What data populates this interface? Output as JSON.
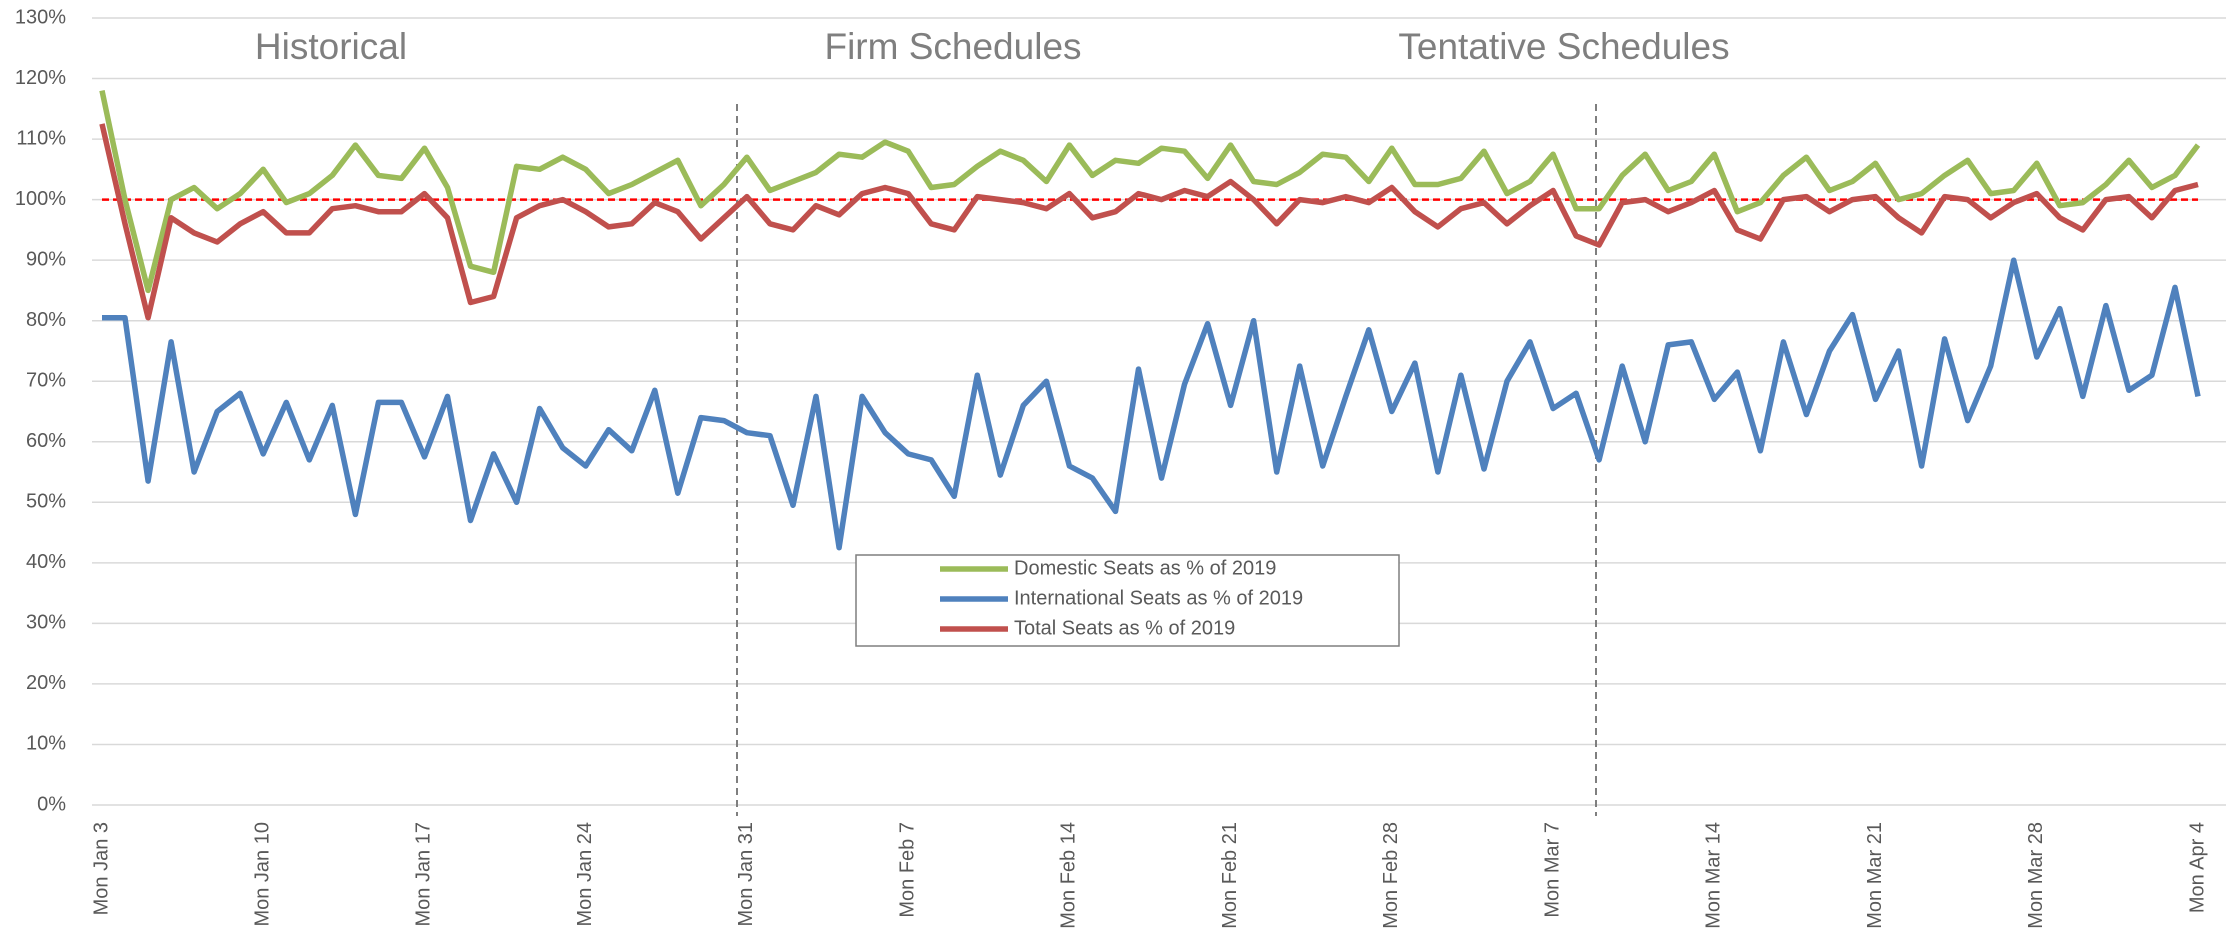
{
  "chart_data": {
    "type": "line",
    "annotations": [
      "Historical",
      "Firm Schedules",
      "Tentative Schedules"
    ],
    "categories": [
      "Mon Jan 3",
      null,
      null,
      null,
      null,
      null,
      null,
      "Mon Jan 10",
      null,
      null,
      null,
      null,
      null,
      null,
      "Mon Jan 17",
      null,
      null,
      null,
      null,
      null,
      null,
      "Mon Jan 24",
      null,
      null,
      null,
      null,
      null,
      null,
      "Mon Jan 31",
      null,
      null,
      null,
      null,
      null,
      null,
      "Mon Feb 7",
      null,
      null,
      null,
      null,
      null,
      null,
      "Mon Feb 14",
      null,
      null,
      null,
      null,
      null,
      null,
      "Mon Feb 21",
      null,
      null,
      null,
      null,
      null,
      null,
      "Mon Feb 28",
      null,
      null,
      null,
      null,
      null,
      null,
      "Mon Mar 7",
      null,
      null,
      null,
      null,
      null,
      null,
      "Mon Mar 14",
      null,
      null,
      null,
      null,
      null,
      null,
      "Mon Mar 21",
      null,
      null,
      null,
      null,
      null,
      null,
      "Mon Mar 28",
      null,
      null,
      null,
      null,
      null,
      null,
      "Mon Apr 4"
    ],
    "series": [
      {
        "name": "Domestic Seats as % of 2019",
        "color": "#9bbb59",
        "values": [
          118,
          100,
          85,
          100,
          102,
          98.5,
          101,
          105,
          99.5,
          101,
          104,
          109,
          104,
          103.5,
          108.5,
          102,
          89,
          88,
          105.5,
          105,
          107,
          105,
          101,
          102.5,
          104.5,
          106.5,
          99,
          102.5,
          107,
          101.5,
          103,
          104.5,
          107.5,
          107,
          109.5,
          108,
          102,
          102.5,
          105.5,
          108,
          106.5,
          103,
          109,
          104,
          106.5,
          106,
          108.5,
          108,
          103.5,
          109,
          103,
          102.5,
          104.5,
          107.5,
          107,
          103,
          108.5,
          102.5,
          102.5,
          103.5,
          108,
          101,
          103,
          107.5,
          98.5,
          98.5,
          104,
          107.5,
          101.5,
          103,
          107.5,
          98,
          99.5,
          104,
          107,
          101.5,
          103,
          106,
          100,
          101,
          104,
          106.5,
          101,
          101.5,
          106,
          99,
          99.5,
          102.5,
          106.5,
          102,
          104,
          109
        ]
      },
      {
        "name": "International Seats as % of 2019",
        "color": "#4f81bd",
        "values": [
          80.5,
          80.5,
          53.5,
          76.5,
          55,
          65,
          68,
          58,
          66.5,
          57,
          66,
          48,
          66.5,
          66.5,
          57.5,
          67.5,
          47,
          58,
          50,
          65.5,
          59,
          56,
          62,
          58.5,
          68.5,
          51.5,
          64,
          63.5,
          61.5,
          61,
          49.5,
          67.5,
          42.5,
          67.5,
          61.5,
          58,
          57,
          51,
          71,
          54.5,
          66,
          70,
          56,
          54,
          48.5,
          72,
          54,
          69.5,
          79.5,
          66,
          80,
          55,
          72.5,
          56,
          67.5,
          78.5,
          65,
          73,
          55,
          71,
          55.5,
          70,
          76.5,
          65.5,
          68,
          57,
          72.5,
          60,
          76,
          76.5,
          67,
          71.5,
          58.5,
          76.5,
          64.5,
          75,
          81,
          67,
          75,
          56,
          77,
          63.5,
          72.5,
          90,
          74,
          82,
          67.5,
          82.5,
          68.5,
          71,
          85.5,
          67.5
        ]
      },
      {
        "name": "Total Seats as % of 2019",
        "color": "#c0504d",
        "values": [
          112.5,
          96,
          80.5,
          97,
          94.5,
          93,
          96,
          98,
          94.5,
          94.5,
          98.5,
          99,
          98,
          98,
          101,
          97,
          83,
          84,
          97,
          99,
          100,
          98,
          95.5,
          96,
          99.5,
          98,
          93.5,
          97,
          100.5,
          96,
          95,
          99,
          97.5,
          101,
          102,
          101,
          96,
          95,
          100.5,
          100,
          99.5,
          98.5,
          101,
          97,
          98,
          101,
          100,
          101.5,
          100.5,
          103,
          100,
          96,
          100,
          99.5,
          100.5,
          99.5,
          102,
          98,
          95.5,
          98.5,
          99.5,
          96,
          99,
          101.5,
          94,
          92.5,
          99.5,
          100,
          98,
          99.5,
          101.5,
          95,
          93.5,
          100,
          100.5,
          98,
          100,
          100.5,
          97,
          94.5,
          100.5,
          100,
          97,
          99.5,
          101,
          97,
          95,
          100,
          100.5,
          97,
          101.5,
          102.5
        ]
      }
    ],
    "reference_line": {
      "value": 100,
      "color": "#ff0000"
    },
    "ylim": [
      0,
      130
    ],
    "yticks": [
      {
        "value": 0,
        "label": "0%"
      },
      {
        "value": 10,
        "label": "10%"
      },
      {
        "value": 20,
        "label": "20%"
      },
      {
        "value": 30,
        "label": "30%"
      },
      {
        "value": 40,
        "label": "40%"
      },
      {
        "value": 50,
        "label": "50%"
      },
      {
        "value": 60,
        "label": "60%"
      },
      {
        "value": 70,
        "label": "70%"
      },
      {
        "value": 80,
        "label": "80%"
      },
      {
        "value": 90,
        "label": "90%"
      },
      {
        "value": 100,
        "label": "100%"
      },
      {
        "value": 110,
        "label": "110%"
      },
      {
        "value": 120,
        "label": "120%"
      },
      {
        "value": 130,
        "label": "130%"
      }
    ],
    "grid": true
  }
}
